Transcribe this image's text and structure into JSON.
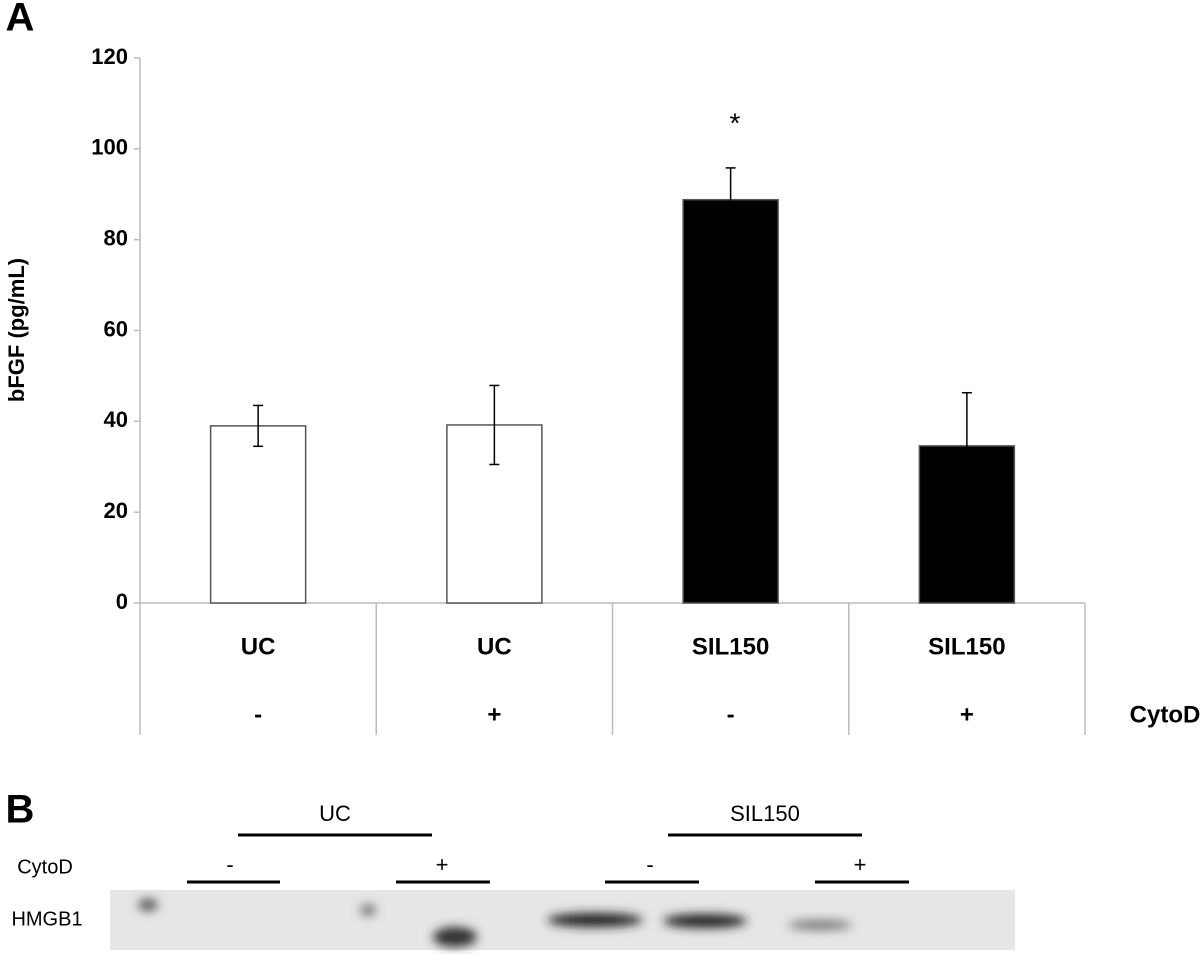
{
  "chart_data": {
    "type": "bar",
    "panel_label": "A",
    "ylabel": "bFGF (pg/mL)",
    "categories": [
      "UC",
      "UC",
      "SIL150",
      "SIL150"
    ],
    "treatment_label": "CytoD",
    "treatments": [
      "-",
      "+",
      "-",
      "+"
    ],
    "values": [
      39,
      39.2,
      88.8,
      34.6
    ],
    "errors": [
      4.5,
      8.7,
      7,
      11.7
    ],
    "colors": [
      "#ffffff",
      "#ffffff",
      "#000000",
      "#000000"
    ],
    "annotation": "*",
    "ylim": [
      0,
      120
    ],
    "yticks": [
      0,
      20,
      40,
      60,
      80,
      100,
      120
    ],
    "grid": false
  },
  "blot": {
    "panel_label": "B",
    "groups": [
      "UC",
      "SIL150"
    ],
    "treatment_label": "CytoD",
    "treatments": [
      "-",
      "+",
      "-",
      "+"
    ],
    "protein": "HMGB1"
  }
}
